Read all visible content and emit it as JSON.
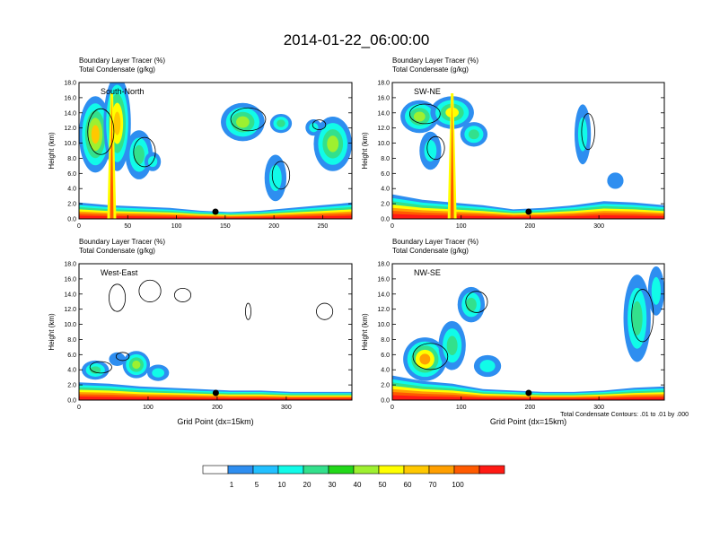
{
  "title": "2014-01-22_06:00:00",
  "footnote": "Total Condensate Contours: .01 to .01 by .000",
  "chart_data": [
    {
      "type": "heatmap",
      "panel_label": "South-North",
      "var1": "Boundary Layer Tracer   (%)",
      "var2": "Total Condensate   (g/kg)",
      "ylabel": "Height (km)",
      "xlabel": "",
      "xlim": [
        0,
        280
      ],
      "ylim": [
        0,
        18
      ],
      "xticks": [
        0,
        50,
        100,
        150,
        200,
        250
      ],
      "yticks": [
        "0.0",
        "2.0",
        "4.0",
        "6.0",
        "8.0",
        "10.0",
        "12.0",
        "14.0",
        "16.0",
        "18.0"
      ],
      "marker_x": 140
    },
    {
      "type": "heatmap",
      "panel_label": "SW-NE",
      "var1": "Boundary Layer Tracer   (%)",
      "var2": "Total Condensate   (g/kg)",
      "ylabel": "Height (km)",
      "xlabel": "",
      "xlim": [
        0,
        395
      ],
      "ylim": [
        0,
        18
      ],
      "xticks": [
        0,
        100,
        200,
        300
      ],
      "yticks": [
        "0.0",
        "2.0",
        "4.0",
        "6.0",
        "8.0",
        "10.0",
        "12.0",
        "14.0",
        "16.0",
        "18.0"
      ],
      "marker_x": 198
    },
    {
      "type": "heatmap",
      "panel_label": "West-East",
      "var1": "Boundary Layer Tracer   (%)",
      "var2": "Total Condensate   (g/kg)",
      "ylabel": "Height (km)",
      "xlabel": "Grid Point (dx=15km)",
      "xlim": [
        0,
        395
      ],
      "ylim": [
        0,
        18
      ],
      "xticks": [
        0,
        100,
        200,
        300
      ],
      "yticks": [
        "0.0",
        "2.0",
        "4.0",
        "6.0",
        "8.0",
        "10.0",
        "12.0",
        "14.0",
        "16.0",
        "18.0"
      ],
      "marker_x": 198
    },
    {
      "type": "heatmap",
      "panel_label": "NW-SE",
      "var1": "Boundary Layer Tracer   (%)",
      "var2": "Total Condensate   (g/kg)",
      "ylabel": "Height (km)",
      "xlabel": "Grid Point (dx=15km)",
      "xlim": [
        0,
        395
      ],
      "ylim": [
        0,
        18
      ],
      "xticks": [
        0,
        100,
        200,
        300
      ],
      "yticks": [
        "0.0",
        "2.0",
        "4.0",
        "6.0",
        "8.0",
        "10.0",
        "12.0",
        "14.0",
        "16.0",
        "18.0"
      ],
      "marker_x": 198
    }
  ],
  "colorbar": {
    "labels": [
      "1",
      "5",
      "10",
      "20",
      "30",
      "40",
      "50",
      "60",
      "70",
      "100"
    ],
    "colors": [
      "#ffffff",
      "#2e8ef0",
      "#22c0ff",
      "#11fbe8",
      "#33e08c",
      "#22d81a",
      "#9ef030",
      "#ffff00",
      "#ffc800",
      "#ff9f00",
      "#ff5a00",
      "#ff1a14"
    ]
  }
}
